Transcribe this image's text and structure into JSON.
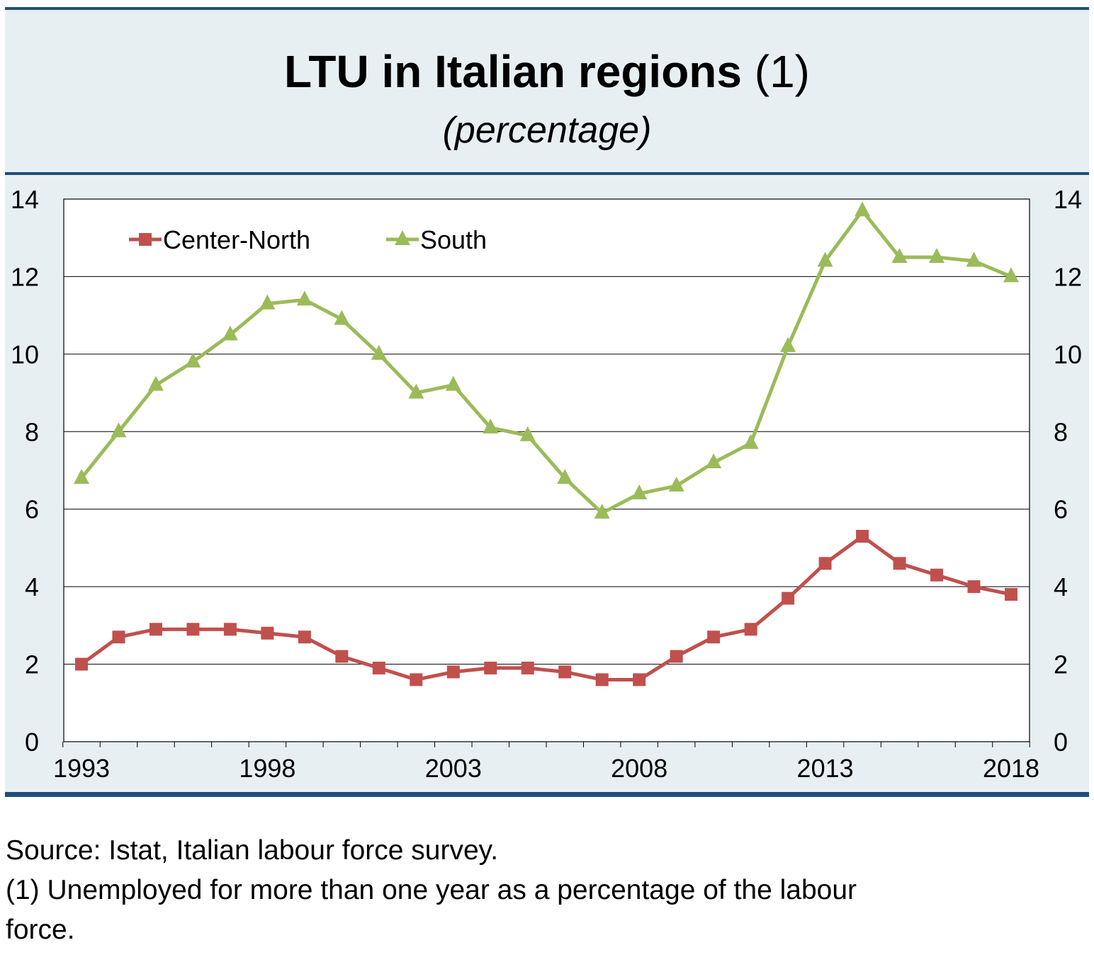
{
  "chart_data": {
    "type": "line",
    "title": "LTU in Italian regions",
    "title_note": "(1)",
    "subtitle": "(percentage)",
    "xlabel": "",
    "ylabel": "",
    "ylim": [
      0,
      14
    ],
    "yticks": [
      0,
      2,
      4,
      6,
      8,
      10,
      12,
      14
    ],
    "xticks": [
      1993,
      1998,
      2003,
      2008,
      2013,
      2018
    ],
    "grid": true,
    "legend_position": "top-left",
    "x": [
      1993,
      1994,
      1995,
      1996,
      1997,
      1998,
      1999,
      2000,
      2001,
      2002,
      2003,
      2004,
      2005,
      2006,
      2007,
      2008,
      2009,
      2010,
      2011,
      2012,
      2013,
      2014,
      2015,
      2016,
      2017,
      2018
    ],
    "series": [
      {
        "name": "Center-North",
        "color": "#c0504d",
        "marker": "square",
        "values": [
          2.0,
          2.7,
          2.9,
          2.9,
          2.9,
          2.8,
          2.7,
          2.2,
          1.9,
          1.6,
          1.8,
          1.9,
          1.9,
          1.8,
          1.6,
          1.6,
          2.2,
          2.7,
          2.9,
          3.7,
          4.6,
          5.3,
          4.6,
          4.3,
          4.0,
          3.8
        ]
      },
      {
        "name": "South",
        "color": "#9bbb59",
        "marker": "triangle",
        "values": [
          6.8,
          8.0,
          9.2,
          9.8,
          10.5,
          11.3,
          11.4,
          10.9,
          10.0,
          9.0,
          9.2,
          8.1,
          7.9,
          6.8,
          5.9,
          6.4,
          6.6,
          7.2,
          7.7,
          10.2,
          12.4,
          13.7,
          12.5,
          12.5,
          12.4,
          12.0
        ]
      }
    ]
  },
  "footer": {
    "source": "Source: Istat, Italian labour force survey.",
    "note_line1": "(1) Unemployed for more than one year as a percentage of the labour",
    "note_line2": "force."
  }
}
